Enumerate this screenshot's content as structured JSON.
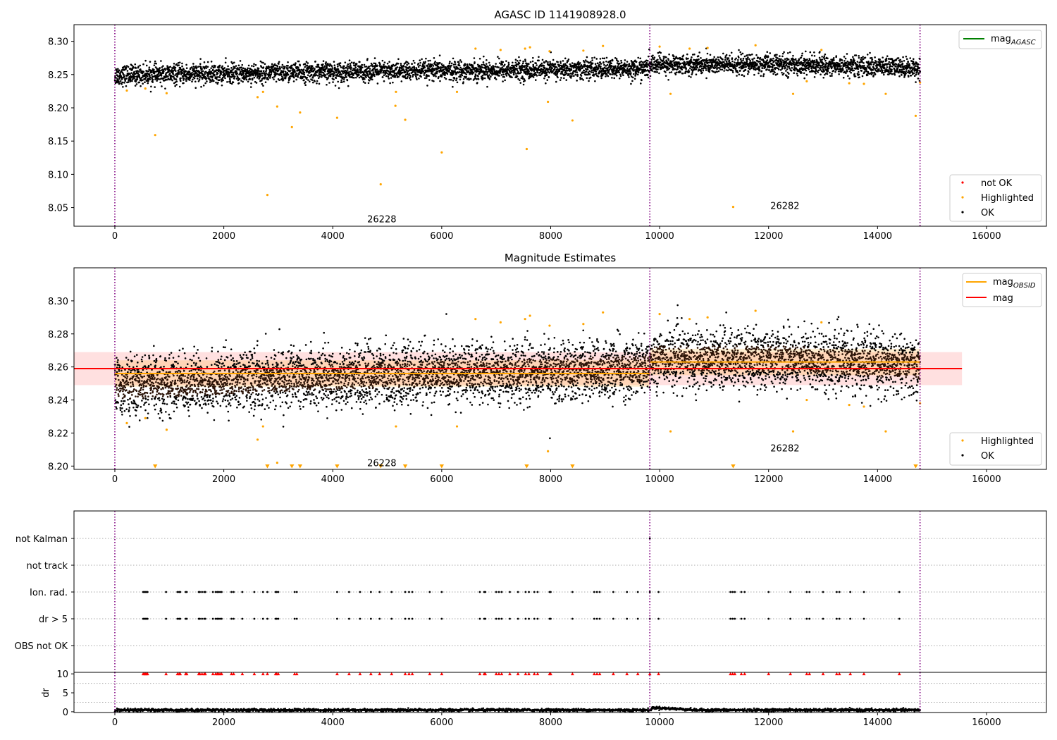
{
  "chart_data": [
    {
      "type": "scatter",
      "title": "AGASC ID 1141908928.0",
      "xlabel": "",
      "ylabel": "",
      "xlim": [
        -750,
        17100
      ],
      "ylim": [
        8.022,
        8.325
      ],
      "xticks": [
        0,
        2000,
        4000,
        6000,
        8000,
        10000,
        12000,
        14000,
        16000
      ],
      "xtick_labels": [
        "0",
        "2000",
        "4000",
        "6000",
        "8000",
        "10000",
        "12000",
        "14000",
        "16000"
      ],
      "yticks": [
        8.05,
        8.1,
        8.15,
        8.2,
        8.25,
        8.3
      ],
      "ytick_labels": [
        "8.05",
        "8.10",
        "8.15",
        "8.20",
        "8.25",
        "8.30"
      ],
      "grid": false,
      "obsid_boundaries": [
        0,
        9820,
        14780
      ],
      "annotations": [
        {
          "text": "26228",
          "x": 4900,
          "y": 8.033
        },
        {
          "text": "26282",
          "x": 12300,
          "y": 8.053
        }
      ],
      "line_legend": {
        "position": "upper-right",
        "entries": [
          {
            "label": "mag",
            "sub": "AGASC",
            "color": "#008000"
          }
        ]
      },
      "point_legend": {
        "position": "lower-right",
        "entries": [
          {
            "label": "not OK",
            "color": "#ff0000"
          },
          {
            "label": "Highlighted",
            "color": "#ffa500"
          },
          {
            "label": "OK",
            "color": "#000000"
          }
        ]
      },
      "series": [
        {
          "name": "OK",
          "color": "#000000",
          "x_range": [
            0,
            14780
          ],
          "baseline": [
            [
              0,
              8.249
            ],
            [
              4000,
              8.254
            ],
            [
              9800,
              8.259
            ],
            [
              9850,
              8.265
            ],
            [
              12500,
              8.265
            ],
            [
              14780,
              8.26
            ]
          ],
          "spread": 0.022
        },
        {
          "name": "Highlighted",
          "color": "#ffa500",
          "points": [
            [
              220,
              8.226
            ],
            [
              560,
              8.229
            ],
            [
              740,
              8.159
            ],
            [
              950,
              8.222
            ],
            [
              2620,
              8.216
            ],
            [
              2720,
              8.224
            ],
            [
              2800,
              8.069
            ],
            [
              2980,
              8.202
            ],
            [
              3250,
              8.171
            ],
            [
              3400,
              8.193
            ],
            [
              4080,
              8.185
            ],
            [
              4880,
              8.085
            ],
            [
              5150,
              8.203
            ],
            [
              5160,
              8.224
            ],
            [
              5330,
              8.182
            ],
            [
              6000,
              8.133
            ],
            [
              6280,
              8.224
            ],
            [
              6620,
              8.289
            ],
            [
              7080,
              8.287
            ],
            [
              7530,
              8.289
            ],
            [
              7560,
              8.138
            ],
            [
              7620,
              8.291
            ],
            [
              7950,
              8.209
            ],
            [
              7980,
              8.285
            ],
            [
              8400,
              8.181
            ],
            [
              8600,
              8.286
            ],
            [
              8960,
              8.293
            ],
            [
              10000,
              8.292
            ],
            [
              10200,
              8.221
            ],
            [
              10550,
              8.289
            ],
            [
              10880,
              8.29
            ],
            [
              11350,
              8.051
            ],
            [
              11760,
              8.294
            ],
            [
              12450,
              8.221
            ],
            [
              12700,
              8.24
            ],
            [
              12970,
              8.287
            ],
            [
              13480,
              8.237
            ],
            [
              13750,
              8.236
            ],
            [
              14150,
              8.221
            ],
            [
              14700,
              8.188
            ],
            [
              14780,
              8.238
            ]
          ]
        }
      ]
    },
    {
      "type": "scatter",
      "title": "Magnitude Estimates",
      "xlabel": "",
      "ylabel": "",
      "xlim": [
        -750,
        17100
      ],
      "ylim": [
        8.198,
        8.32
      ],
      "xticks": [
        0,
        2000,
        4000,
        6000,
        8000,
        10000,
        12000,
        14000,
        16000
      ],
      "xtick_labels": [
        "0",
        "2000",
        "4000",
        "6000",
        "8000",
        "10000",
        "12000",
        "14000",
        "16000"
      ],
      "yticks": [
        8.2,
        8.22,
        8.24,
        8.26,
        8.28,
        8.3
      ],
      "ytick_labels": [
        "8.20",
        "8.22",
        "8.24",
        "8.26",
        "8.28",
        "8.30"
      ],
      "grid": false,
      "obsid_boundaries": [
        0,
        9820,
        14780
      ],
      "mag": 8.259,
      "mag_band": [
        8.249,
        8.269
      ],
      "mag_xrange": [
        -750,
        15550
      ],
      "mag_obsid": [
        {
          "x0": 0,
          "x1": 9820,
          "value": 8.256,
          "band": [
            8.248,
            8.264
          ]
        },
        {
          "x0": 9820,
          "x1": 14780,
          "value": 8.263,
          "band": [
            8.255,
            8.271
          ]
        }
      ],
      "annotations": [
        {
          "text": "26228",
          "x": 4900,
          "y": 8.202
        },
        {
          "text": "26282",
          "x": 12300,
          "y": 8.211
        }
      ],
      "line_legend": {
        "position": "upper-right",
        "entries": [
          {
            "label": "mag",
            "sub": "OBSID",
            "color": "#ffa500"
          },
          {
            "label": "mag",
            "sub": "",
            "color": "#ff0000"
          }
        ]
      },
      "point_legend": {
        "position": "lower-right",
        "entries": [
          {
            "label": "Highlighted",
            "color": "#ffa500"
          },
          {
            "label": "OK",
            "color": "#000000"
          }
        ]
      },
      "series": [
        {
          "name": "OK",
          "color": "#000000",
          "x_range": [
            0,
            14780
          ],
          "baseline": [
            [
              0,
              8.248
            ],
            [
              4000,
              8.254
            ],
            [
              9800,
              8.259
            ],
            [
              9850,
              8.265
            ],
            [
              12500,
              8.265
            ],
            [
              14780,
              8.26
            ]
          ],
          "spread": 0.022
        },
        {
          "name": "Highlighted",
          "color": "#ffa500",
          "points": [
            [
              220,
              8.226
            ],
            [
              560,
              8.229
            ],
            [
              950,
              8.222
            ],
            [
              2620,
              8.216
            ],
            [
              2720,
              8.224
            ],
            [
              2980,
              8.202
            ],
            [
              5160,
              8.224
            ],
            [
              6280,
              8.224
            ],
            [
              6620,
              8.289
            ],
            [
              7080,
              8.287
            ],
            [
              7530,
              8.289
            ],
            [
              7620,
              8.291
            ],
            [
              7950,
              8.209
            ],
            [
              7980,
              8.285
            ],
            [
              8600,
              8.286
            ],
            [
              8960,
              8.293
            ],
            [
              10000,
              8.292
            ],
            [
              10200,
              8.221
            ],
            [
              10550,
              8.289
            ],
            [
              10880,
              8.29
            ],
            [
              11760,
              8.294
            ],
            [
              12450,
              8.221
            ],
            [
              12700,
              8.24
            ],
            [
              12970,
              8.287
            ],
            [
              13480,
              8.237
            ],
            [
              13750,
              8.236
            ],
            [
              14150,
              8.221
            ],
            [
              14780,
              8.238
            ]
          ]
        },
        {
          "name": "Highlighted (below axis)",
          "color": "#ffa500",
          "marker": "triangle-down",
          "x": [
            740,
            2800,
            3250,
            3400,
            4080,
            4880,
            5330,
            6000,
            7560,
            8400,
            11350,
            14700
          ]
        }
      ]
    },
    {
      "type": "scatter",
      "title": "",
      "xlabel": "",
      "ylabel": "",
      "xlim": [
        -750,
        17100
      ],
      "categories": [
        "not Kalman",
        "not track",
        "Ion. rad.",
        "dr > 5",
        "OBS not OK"
      ],
      "obsid_boundaries": [
        0,
        9820,
        14780
      ],
      "grid": true,
      "series": [
        {
          "name": "not Kalman",
          "color": "#000000",
          "x": [
            9820
          ]
        },
        {
          "name": "not track",
          "color": "#000000",
          "x": []
        },
        {
          "name": "Ion. rad.",
          "color": "#000000",
          "x": [
            520,
            540,
            560,
            580,
            600,
            940,
            1150,
            1180,
            1200,
            1300,
            1320,
            1540,
            1560,
            1600,
            1640,
            1660,
            1800,
            1850,
            1880,
            1900,
            1930,
            1960,
            2140,
            2180,
            2340,
            2560,
            2720,
            2800,
            2950,
            2970,
            3000,
            3300,
            3340,
            4080,
            4300,
            4500,
            4700,
            4860,
            5080,
            5330,
            5400,
            5460,
            5780,
            6000,
            6700,
            6780,
            6800,
            7000,
            7050,
            7100,
            7250,
            7400,
            7540,
            7600,
            7700,
            7760,
            7980,
            8000,
            8400,
            8800,
            8850,
            8900,
            9150,
            9400,
            9600,
            9820,
            9980,
            11300,
            11340,
            11380,
            11500,
            11560,
            12000,
            12400,
            12700,
            12750,
            13000,
            13250,
            13300,
            13500,
            13750,
            14400
          ]
        },
        {
          "name": "dr > 5",
          "color": "#000000",
          "x": [
            520,
            540,
            560,
            580,
            600,
            940,
            1150,
            1180,
            1200,
            1300,
            1320,
            1540,
            1560,
            1600,
            1640,
            1660,
            1800,
            1850,
            1880,
            1900,
            1930,
            1960,
            2140,
            2180,
            2340,
            2560,
            2720,
            2800,
            2950,
            2970,
            3000,
            3300,
            3340,
            4080,
            4300,
            4500,
            4700,
            4860,
            5080,
            5330,
            5400,
            5460,
            5780,
            6000,
            6700,
            6780,
            6800,
            7000,
            7050,
            7100,
            7250,
            7400,
            7540,
            7600,
            7700,
            7760,
            7980,
            8000,
            8400,
            8800,
            8850,
            8900,
            9150,
            9400,
            9600,
            9820,
            9980,
            11300,
            11340,
            11380,
            11500,
            11560,
            12000,
            12400,
            12700,
            12750,
            13000,
            13250,
            13300,
            13500,
            13750,
            14400
          ]
        },
        {
          "name": "OBS not OK",
          "color": "#000000",
          "x": []
        }
      ]
    },
    {
      "type": "scatter",
      "title": "",
      "xlabel": "",
      "ylabel": "dr",
      "xlim": [
        -750,
        17100
      ],
      "ylim": [
        -0.2,
        10.4
      ],
      "xticks": [
        0,
        2000,
        4000,
        6000,
        8000,
        10000,
        12000,
        14000,
        16000
      ],
      "xtick_labels": [
        "0",
        "2000",
        "4000",
        "6000",
        "8000",
        "10000",
        "12000",
        "14000",
        "16000"
      ],
      "yticks": [
        0,
        5,
        10
      ],
      "ytick_labels": [
        "0",
        "5",
        "10"
      ],
      "dotted_grid_y": [
        2.5,
        7.5
      ],
      "obsid_boundaries": [
        0,
        9820,
        14780
      ],
      "series": [
        {
          "name": "dr",
          "color": "#000000",
          "x_range": [
            0,
            14780
          ],
          "baseline": 0.45,
          "spread": 0.35,
          "bump": {
            "x": [
              9850,
              10600
            ],
            "value": 1.1
          }
        },
        {
          "name": "dr > 10",
          "color": "#ff0000",
          "marker": "triangle-up",
          "y": 10,
          "x": [
            520,
            540,
            560,
            580,
            600,
            940,
            1150,
            1180,
            1200,
            1300,
            1320,
            1540,
            1560,
            1600,
            1640,
            1660,
            1800,
            1850,
            1880,
            1900,
            1930,
            1960,
            2140,
            2180,
            2340,
            2560,
            2720,
            2800,
            2950,
            2970,
            3000,
            3300,
            3340,
            4080,
            4300,
            4500,
            4700,
            4860,
            5080,
            5330,
            5400,
            5460,
            5780,
            6000,
            6700,
            6780,
            6800,
            7000,
            7050,
            7100,
            7250,
            7400,
            7540,
            7600,
            7700,
            7760,
            7980,
            8000,
            8400,
            8800,
            8850,
            8900,
            9150,
            9400,
            9600,
            9820,
            9980,
            11300,
            11340,
            11380,
            11500,
            11560,
            12000,
            12400,
            12700,
            12750,
            13000,
            13250,
            13300,
            13500,
            13750,
            14400
          ]
        }
      ]
    }
  ]
}
